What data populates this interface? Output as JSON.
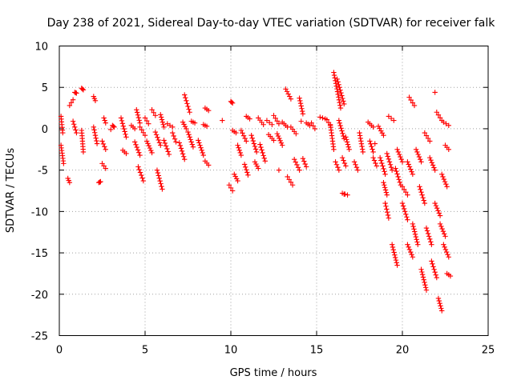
{
  "chart_data": {
    "type": "scatter",
    "title": "Day 238 of 2021, Sidereal Day-to-day VTEC variation (SDTVAR) for receiver falk",
    "xlabel": "GPS time / hours",
    "ylabel": "SDTVAR / TECUs",
    "xlim": [
      0,
      25
    ],
    "ylim": [
      -25,
      10
    ],
    "x_ticks": [
      0,
      5,
      10,
      15,
      20,
      25
    ],
    "y_ticks": [
      -25,
      -20,
      -15,
      -10,
      -5,
      0,
      5,
      10
    ],
    "x_tick_labels": [
      "0",
      "5",
      "10",
      "15",
      "20",
      "25"
    ],
    "y_tick_labels": [
      "-25",
      "-20",
      "-15",
      "-10",
      "-5",
      "0",
      "5",
      "10"
    ],
    "grid": true,
    "marker": "+",
    "color": "#ff0000",
    "series": [
      {
        "name": "SDTVAR",
        "segments": [
          [
            0.1,
            1.5,
            0.2,
            -0.5
          ],
          [
            0.1,
            -2.0,
            0.25,
            -4.2
          ],
          [
            0.5,
            -6.0,
            0.6,
            -6.5
          ],
          [
            0.6,
            2.8,
            0.8,
            3.5
          ],
          [
            0.9,
            4.4,
            1.0,
            4.3
          ],
          [
            1.3,
            4.9,
            1.4,
            4.7
          ],
          [
            0.8,
            0.9,
            1.0,
            -0.5
          ],
          [
            1.3,
            -0.2,
            1.4,
            -2.8
          ],
          [
            2.0,
            3.9,
            2.1,
            3.4
          ],
          [
            2.0,
            0.2,
            2.2,
            -1.8
          ],
          [
            2.3,
            -6.5,
            2.4,
            -6.4
          ],
          [
            2.6,
            1.3,
            2.7,
            0.7
          ],
          [
            2.5,
            -1.5,
            2.7,
            -2.5
          ],
          [
            2.5,
            -4.2,
            2.7,
            -4.8
          ],
          [
            3.1,
            0.4,
            3.2,
            0.2
          ],
          [
            3.6,
            1.3,
            3.9,
            -1.0
          ],
          [
            3.7,
            -2.6,
            3.9,
            -3.0
          ],
          [
            4.2,
            0.4,
            4.4,
            0.0
          ],
          [
            4.4,
            -1.6,
            4.7,
            -3.2
          ],
          [
            4.5,
            2.3,
            4.7,
            0.7
          ],
          [
            4.7,
            0.2,
            5.0,
            -0.8
          ],
          [
            4.6,
            -4.6,
            4.9,
            -6.3
          ],
          [
            5.0,
            1.3,
            5.2,
            0.6
          ],
          [
            5.1,
            -1.5,
            5.4,
            -2.9
          ],
          [
            5.4,
            2.3,
            5.6,
            1.6
          ],
          [
            5.6,
            -0.4,
            5.9,
            -2.0
          ],
          [
            5.7,
            -5.0,
            6.0,
            -7.3
          ],
          [
            5.9,
            1.7,
            6.1,
            0.2
          ],
          [
            6.1,
            -1.4,
            6.4,
            -3.1
          ],
          [
            6.3,
            0.6,
            6.6,
            0.2
          ],
          [
            6.6,
            -0.5,
            6.8,
            -1.6
          ],
          [
            7.0,
            -1.7,
            7.3,
            -3.7
          ],
          [
            7.2,
            0.8,
            7.4,
            0.0
          ],
          [
            7.3,
            4.1,
            7.6,
            2.0
          ],
          [
            7.5,
            -0.4,
            7.8,
            -2.2
          ],
          [
            7.7,
            0.9,
            7.9,
            0.7
          ],
          [
            8.1,
            -1.4,
            8.4,
            -3.2
          ],
          [
            8.4,
            0.5,
            8.6,
            0.3
          ],
          [
            8.5,
            2.5,
            8.7,
            2.2
          ],
          [
            8.5,
            -3.9,
            8.7,
            -4.4
          ],
          [
            9.9,
            -6.8,
            10.1,
            -7.5
          ],
          [
            10.0,
            3.3,
            10.1,
            3.1
          ],
          [
            10.1,
            -0.2,
            10.3,
            -0.5
          ],
          [
            10.2,
            -5.5,
            10.4,
            -6.3
          ],
          [
            10.4,
            -2.0,
            10.6,
            -3.2
          ],
          [
            10.6,
            -0.2,
            10.9,
            -1.5
          ],
          [
            10.8,
            -4.3,
            11.0,
            -5.6
          ],
          [
            10.9,
            1.5,
            11.1,
            1.2
          ],
          [
            11.2,
            -0.8,
            11.5,
            -2.8
          ],
          [
            11.4,
            -4.0,
            11.6,
            -4.8
          ],
          [
            11.6,
            1.3,
            11.9,
            0.5
          ],
          [
            11.7,
            -1.9,
            12.0,
            -3.9
          ],
          [
            12.1,
            1.0,
            12.4,
            0.5
          ],
          [
            12.2,
            -0.7,
            12.5,
            -1.4
          ],
          [
            12.5,
            1.6,
            12.8,
            0.6
          ],
          [
            12.7,
            -0.6,
            13.0,
            -2.0
          ],
          [
            13.0,
            0.8,
            13.3,
            0.2
          ],
          [
            13.2,
            4.8,
            13.5,
            3.6
          ],
          [
            13.3,
            -5.8,
            13.6,
            -6.8
          ],
          [
            13.5,
            0.2,
            13.8,
            -0.6
          ],
          [
            13.7,
            -3.7,
            14.0,
            -5.0
          ],
          [
            14.0,
            3.7,
            14.2,
            1.8
          ],
          [
            14.2,
            -3.6,
            14.4,
            -4.6
          ],
          [
            14.4,
            0.7,
            14.6,
            0.4
          ],
          [
            14.7,
            0.7,
            14.9,
            0.0
          ],
          [
            15.2,
            1.4,
            15.5,
            1.2
          ],
          [
            15.6,
            1.1,
            15.8,
            0.4
          ],
          [
            15.8,
            0.5,
            16.0,
            -2.5
          ],
          [
            16.0,
            6.8,
            16.4,
            2.5
          ],
          [
            16.1,
            -4.0,
            16.3,
            -5.0
          ],
          [
            16.2,
            6.0,
            16.6,
            3.0
          ],
          [
            16.3,
            1.0,
            16.6,
            -1.2
          ],
          [
            16.5,
            -3.5,
            16.7,
            -4.5
          ],
          [
            16.5,
            -7.8,
            16.8,
            -8.0
          ],
          [
            16.7,
            -1.0,
            16.9,
            -2.5
          ],
          [
            17.2,
            -4.0,
            17.4,
            -5.0
          ],
          [
            17.5,
            -0.5,
            17.7,
            -2.8
          ],
          [
            18.0,
            0.8,
            18.3,
            0.2
          ],
          [
            18.1,
            -1.5,
            18.3,
            -2.8
          ],
          [
            18.3,
            -3.5,
            18.5,
            -4.5
          ],
          [
            18.6,
            0.3,
            18.9,
            -0.8
          ],
          [
            18.7,
            -3.5,
            19.0,
            -5.5
          ],
          [
            18.9,
            -6.5,
            19.1,
            -8.0
          ],
          [
            19.0,
            -9.0,
            19.2,
            -10.8
          ],
          [
            19.1,
            -3.0,
            19.4,
            -5.0
          ],
          [
            19.2,
            1.5,
            19.5,
            1.0
          ],
          [
            19.4,
            -14.0,
            19.7,
            -16.5
          ],
          [
            19.6,
            -4.8,
            19.9,
            -6.8
          ],
          [
            19.7,
            -2.5,
            20.0,
            -4.0
          ],
          [
            20.0,
            -9.0,
            20.3,
            -11.0
          ],
          [
            20.0,
            -7.0,
            20.3,
            -8.0
          ],
          [
            20.3,
            -4.0,
            20.6,
            -5.5
          ],
          [
            20.3,
            -14.0,
            20.6,
            -15.5
          ],
          [
            20.4,
            3.8,
            20.7,
            2.8
          ],
          [
            20.6,
            -11.5,
            20.9,
            -14.0
          ],
          [
            20.8,
            -2.5,
            21.1,
            -4.0
          ],
          [
            21.0,
            -7.0,
            21.3,
            -9.0
          ],
          [
            21.1,
            -17.0,
            21.4,
            -19.5
          ],
          [
            21.3,
            -0.5,
            21.6,
            -1.5
          ],
          [
            21.4,
            -12.0,
            21.7,
            -14.0
          ],
          [
            21.6,
            -3.5,
            21.9,
            -5.0
          ],
          [
            21.7,
            -16.0,
            22.0,
            -18.0
          ],
          [
            21.9,
            -9.0,
            22.2,
            -10.5
          ],
          [
            22.0,
            2.0,
            22.3,
            1.0
          ],
          [
            22.1,
            -20.5,
            22.3,
            -22.0
          ],
          [
            22.2,
            -11.5,
            22.5,
            -13.0
          ],
          [
            22.3,
            -5.5,
            22.6,
            -7.0
          ],
          [
            22.4,
            -14.0,
            22.7,
            -15.5
          ],
          [
            22.4,
            0.8,
            22.7,
            0.4
          ],
          [
            22.5,
            -2.0,
            22.7,
            -2.5
          ],
          [
            22.6,
            -17.5,
            22.8,
            -17.8
          ]
        ],
        "points": [
          [
            2.4,
            -6.4
          ],
          [
            21.9,
            4.4
          ],
          [
            14.1,
            0.9
          ],
          [
            12.8,
            -5.0
          ],
          [
            18.4,
            -1.8
          ],
          [
            9.5,
            1.0
          ],
          [
            3.0,
            -0.1
          ],
          [
            16.6,
            -7.9
          ]
        ]
      }
    ]
  }
}
